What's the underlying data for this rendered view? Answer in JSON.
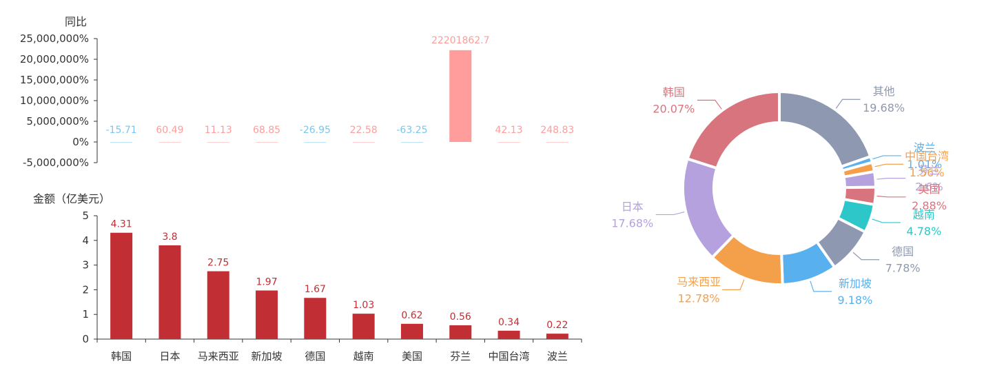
{
  "colors": {
    "positive": "#ff9c9c",
    "negative": "#79c6f0",
    "bar": "#c12e34",
    "axis": "#333333"
  },
  "chart_data": [
    {
      "type": "bar",
      "ylabel": "同比",
      "categories": [
        "韩国",
        "日本",
        "马来西亚",
        "新加坡",
        "德国",
        "越南",
        "美国",
        "芬兰",
        "中国台湾",
        "波兰"
      ],
      "values": [
        -15.71,
        60.49,
        11.13,
        68.85,
        -26.95,
        22.58,
        -63.25,
        22201862.7,
        42.13,
        248.83
      ],
      "value_labels": [
        "-15.71",
        "60.49",
        "11.13",
        "68.85",
        "-26.95",
        "22.58",
        "-63.25",
        "22201862.7",
        "42.13",
        "248.83"
      ],
      "ylim": [
        -5000000,
        25000000
      ],
      "yticks": [
        -5000000,
        0,
        5000000,
        10000000,
        15000000,
        20000000,
        25000000
      ],
      "ytick_labels": [
        "-5,000,000%",
        "0%",
        "5,000,000%",
        "10,000,000%",
        "15,000,000%",
        "20,000,000%",
        "25,000,000%"
      ],
      "x_axis_labels_visible": false
    },
    {
      "type": "bar",
      "ylabel": "金额（亿美元）",
      "categories": [
        "韩国",
        "日本",
        "马来西亚",
        "新加坡",
        "德国",
        "越南",
        "美国",
        "芬兰",
        "中国台湾",
        "波兰"
      ],
      "values": [
        4.31,
        3.8,
        2.75,
        1.97,
        1.67,
        1.03,
        0.62,
        0.56,
        0.34,
        0.22
      ],
      "value_labels": [
        "4.31",
        "3.8",
        "2.75",
        "1.97",
        "1.67",
        "1.03",
        "0.62",
        "0.56",
        "0.34",
        "0.22"
      ],
      "ylim": [
        0,
        5
      ],
      "yticks": [
        0,
        1,
        2,
        3,
        4,
        5
      ],
      "ytick_labels": [
        "0",
        "1",
        "2",
        "3",
        "4",
        "5"
      ]
    },
    {
      "type": "pie",
      "donut": true,
      "slices": [
        {
          "name": "其他",
          "value": 19.68,
          "label": "19.68%",
          "color": "#8e98b0"
        },
        {
          "name": "波兰",
          "value": 1.01,
          "label": "1.01%",
          "color": "#58b0ee"
        },
        {
          "name": "中国台湾",
          "value": 1.56,
          "label": "1.56%",
          "color": "#f4a04a"
        },
        {
          "name": "芬兰",
          "value": 2.6,
          "label": "2.6%",
          "color": "#b5a1dd"
        },
        {
          "name": "美国",
          "value": 2.88,
          "label": "2.88%",
          "color": "#d8747e"
        },
        {
          "name": "越南",
          "value": 4.78,
          "label": "4.78%",
          "color": "#2ec7c9"
        },
        {
          "name": "德国",
          "value": 7.78,
          "label": "7.78%",
          "color": "#8e98b0"
        },
        {
          "name": "新加坡",
          "value": 9.18,
          "label": "9.18%",
          "color": "#58b0ee"
        },
        {
          "name": "马来西亚",
          "value": 12.78,
          "label": "12.78%",
          "color": "#f4a04a"
        },
        {
          "name": "日本",
          "value": 17.68,
          "label": "17.68%",
          "color": "#b5a1dd"
        },
        {
          "name": "韩国",
          "value": 20.07,
          "label": "20.07%",
          "color": "#d8747e"
        }
      ]
    }
  ]
}
